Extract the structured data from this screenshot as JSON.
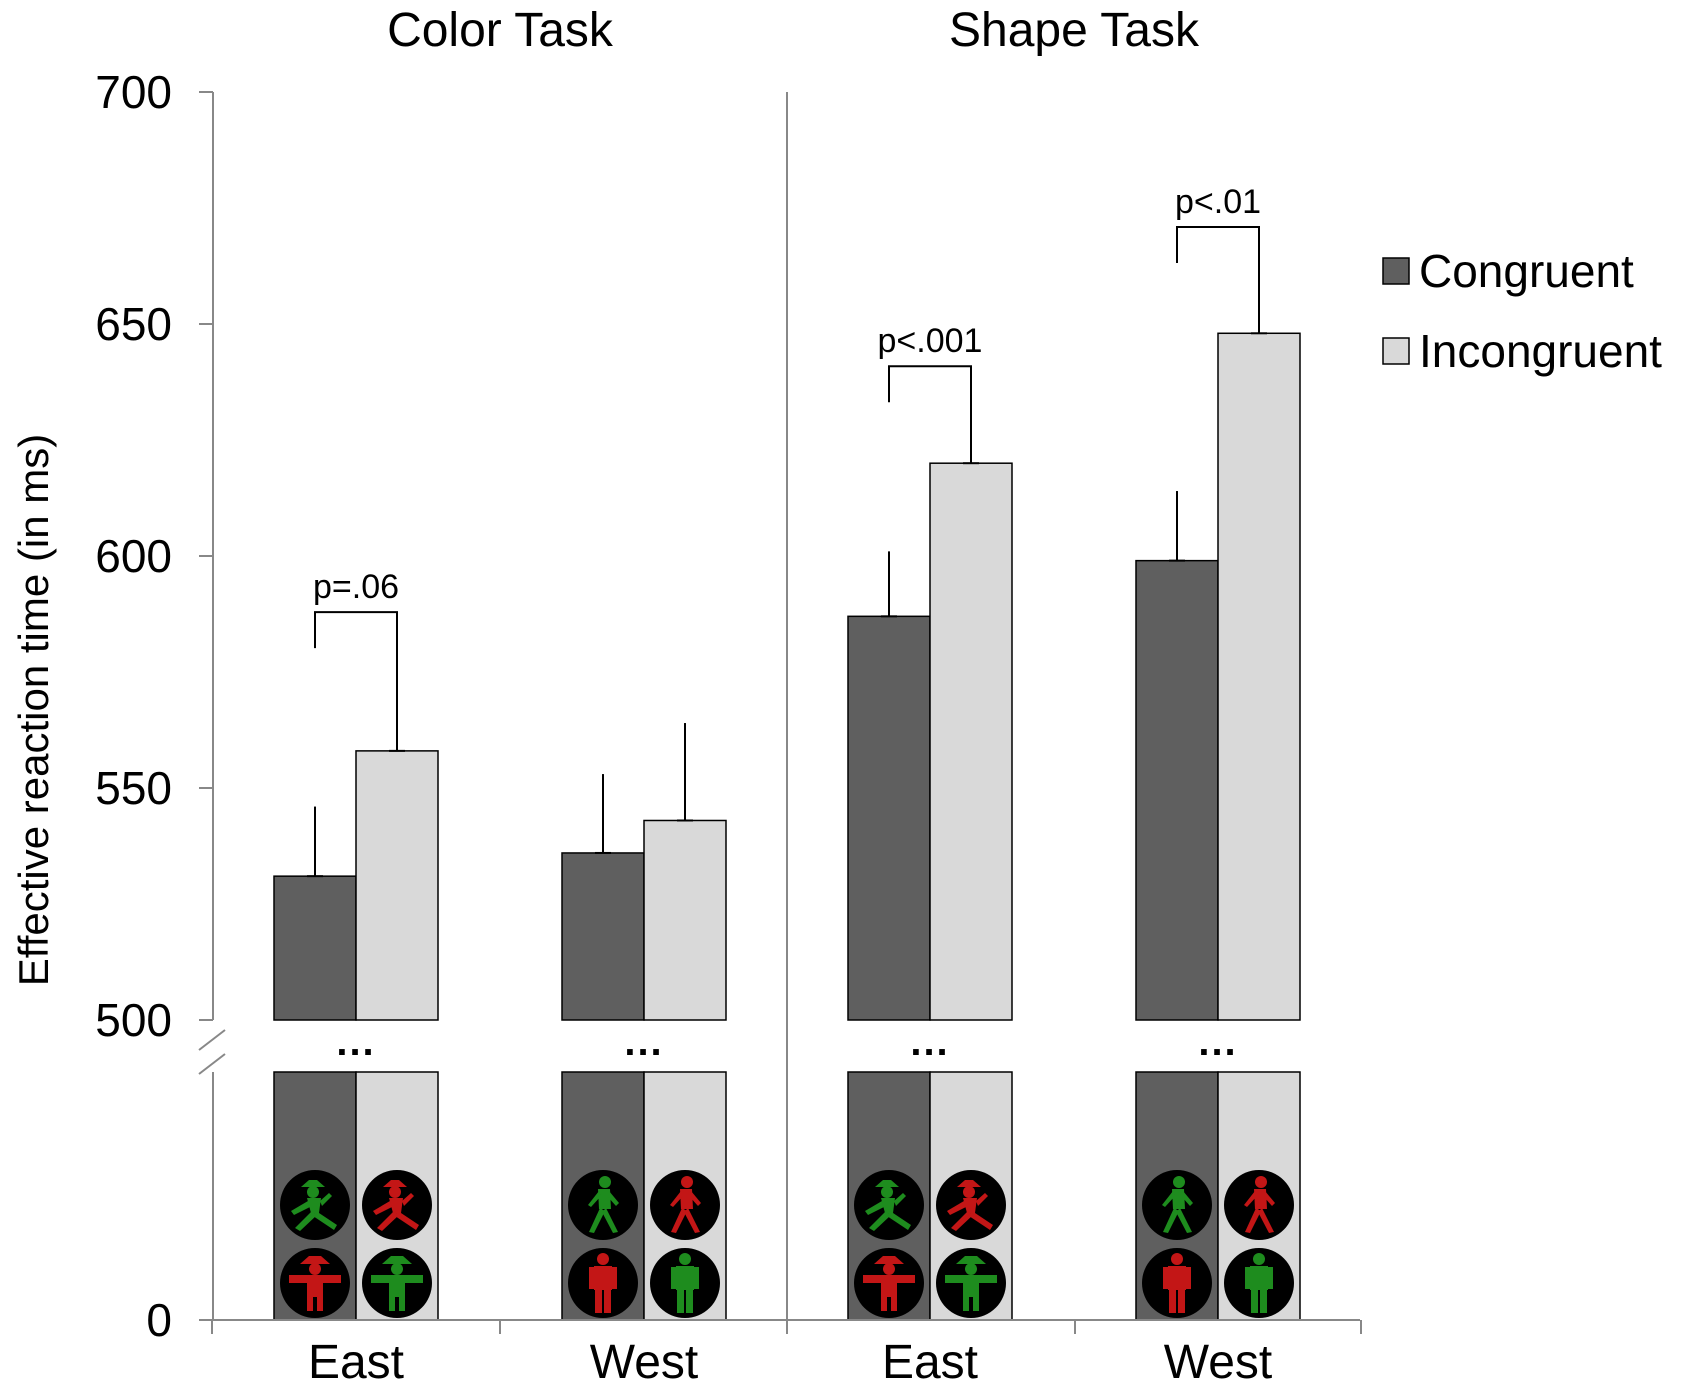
{
  "chart_data": {
    "type": "bar",
    "ylabel": "Effective reaction time (in ms)",
    "yticks": [
      0,
      500,
      550,
      600,
      650,
      700
    ],
    "ylim_broken": [
      500,
      700
    ],
    "axis_break": true,
    "break_marker": "...",
    "legend_placement": "right",
    "panels": [
      {
        "title": "Color Task",
        "categories": [
          "East",
          "West"
        ],
        "series": [
          {
            "name": "Congruent",
            "color": "#5f5f5f",
            "values": [
              531,
              536
            ],
            "error": [
              15,
              17
            ]
          },
          {
            "name": "Incongruent",
            "color": "#d9d9d9",
            "values": [
              558,
              543
            ],
            "error": [
              23,
              21
            ]
          }
        ],
        "annotations": [
          {
            "category_index": 0,
            "text": "p=.06"
          }
        ],
        "icons": [
          "ampelmann-east",
          "standard-west"
        ]
      },
      {
        "title": "Shape Task",
        "categories": [
          "East",
          "West"
        ],
        "series": [
          {
            "name": "Congruent",
            "color": "#5f5f5f",
            "values": [
              587,
              599
            ],
            "error": [
              14,
              15
            ]
          },
          {
            "name": "Incongruent",
            "color": "#d9d9d9",
            "values": [
              620,
              648
            ],
            "error": [
              14,
              16
            ]
          }
        ],
        "annotations": [
          {
            "category_index": 0,
            "text": "p<.001"
          },
          {
            "category_index": 1,
            "text": "p<.01"
          }
        ],
        "icons": [
          "ampelmann-east",
          "standard-west"
        ]
      }
    ],
    "legend": [
      {
        "label": "Congruent",
        "color": "#5f5f5f"
      },
      {
        "label": "Incongruent",
        "color": "#d9d9d9"
      }
    ],
    "icon_colors": {
      "green": "#1e8c1e",
      "red": "#c31616",
      "disc": "#000000"
    }
  }
}
